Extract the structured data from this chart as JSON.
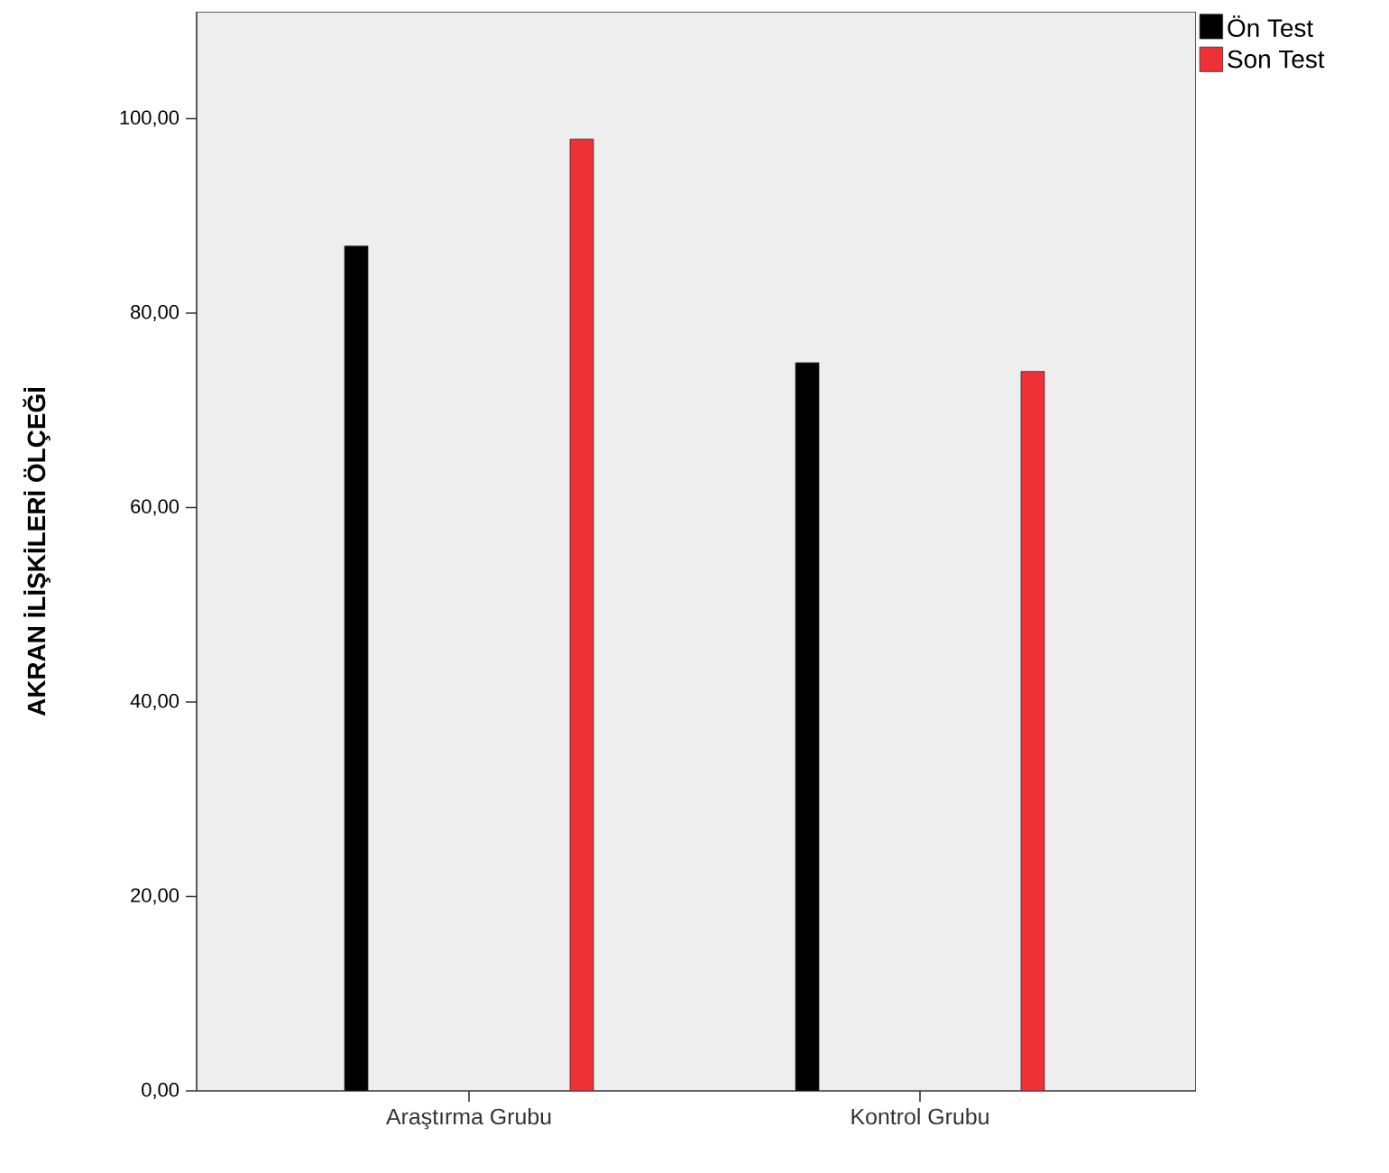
{
  "chart_data": {
    "type": "bar",
    "ylabel": "AKRAN İLİŞKİLERİ ÖLÇEĞİ",
    "categories": [
      "Araştırma Grubu",
      "Kontrol Grubu"
    ],
    "series": [
      {
        "name": "Ön Test",
        "color": "#000000",
        "values": [
          86.9,
          74.9
        ]
      },
      {
        "name": "Son Test",
        "color": "#ee3137",
        "values": [
          97.9,
          74.0
        ]
      }
    ],
    "ylim": [
      0,
      111
    ],
    "yticks": [
      {
        "value": 0,
        "label": "0,00"
      },
      {
        "value": 20,
        "label": "20,00"
      },
      {
        "value": 40,
        "label": "40,00"
      },
      {
        "value": 60,
        "label": "60,00"
      },
      {
        "value": 80,
        "label": "80,00"
      },
      {
        "value": 100,
        "label": "100,00"
      }
    ],
    "grid": false,
    "legend": "top right"
  }
}
